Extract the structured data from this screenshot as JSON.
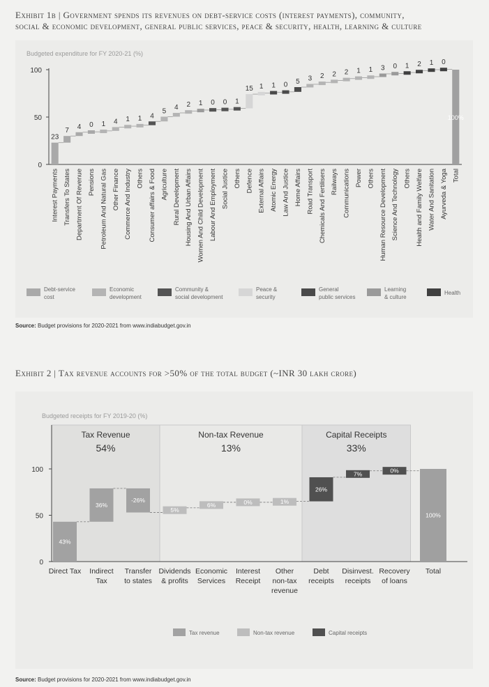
{
  "exhibit1": {
    "title_line1": "Exhibit 1b | Government spends its revenues on debt-service costs (interest payments), community,",
    "title_line2": "social & economic development, general public services, peace & security, health, learning & culture",
    "source_label": "Source:",
    "source_text": "Budget provisions for 2020-2021 from www.indiabudget.gov.in"
  },
  "exhibit2": {
    "title": "Exhibit 2 | Tax revenue accounts for >50% of the total budget (~INR 30 lakh crore)",
    "source_label": "Source:",
    "source_text": "Budget provisions for 2020-2021 from www.indiabudget.gov.in"
  },
  "colors": {
    "Debt-service cost": "#a9a9a9",
    "Economic development": "#b4b4b4",
    "Community & social development": "#545454",
    "Peace & security": "#d6d6d6",
    "General public services": "#4a4a4a",
    "Learning & culture": "#9a9a9a",
    "Health": "#404040",
    "Tax revenue": "#a2a2a2",
    "Non-tax revenue": "#bdbdbd",
    "Capital receipts": "#505050"
  },
  "chart_data": [
    {
      "type": "bar",
      "subtype": "waterfall",
      "title": "Budgeted expenditure for FY 2020-21 (%)",
      "ylim": [
        0,
        100
      ],
      "yticks": [
        "0",
        "50",
        "100"
      ],
      "categories": [
        "Interest Payments",
        "Transfers To States",
        "Department Of Revenue",
        "Pensions",
        "Petroleum And Natural Gas",
        "Other Finance",
        "Commerce And Industry",
        "Others",
        "Consumer affairs & Food",
        "Agriculture",
        "Rural Development",
        "Housing And Urban Affairs",
        "Women And Child Development",
        "Labour And Employment",
        "Social Justice",
        "Others",
        "Defence",
        "External Affairs",
        "Atomic Energy",
        "Law And Justice",
        "Home Affairs",
        "Road Transport",
        "Chemicals And Fertilisers",
        "Railways",
        "Communications",
        "Power",
        "Others",
        "Human Resource Development",
        "Science And Technology",
        "Others",
        "Health and Family Welfare",
        "Water And Sanitation",
        "Ayurveda & Yoga",
        "Total"
      ],
      "value_labels": [
        "23",
        "7",
        "4",
        "0",
        "1",
        "4",
        "1",
        "1",
        "4",
        "5",
        "4",
        "2",
        "1",
        "0",
        "0",
        "1",
        "15",
        "1",
        "1",
        "0",
        "5",
        "3",
        "2",
        "2",
        "2",
        "1",
        "1",
        "3",
        "0",
        "1",
        "2",
        "1",
        "0",
        "100%"
      ],
      "values": [
        23,
        7,
        4,
        0.4,
        1,
        4,
        1,
        1,
        4,
        5,
        4,
        2,
        1,
        0.4,
        0.4,
        1,
        15,
        1,
        1,
        0.4,
        5,
        3,
        2,
        2,
        2,
        1,
        1,
        3,
        0.4,
        1,
        2,
        1,
        0.4,
        100
      ],
      "groups": [
        "Debt-service cost",
        "Debt-service cost",
        "Debt-service cost",
        "Debt-service cost",
        "Economic development",
        "Economic development",
        "Economic development",
        "Economic development",
        "Community & social development",
        "Economic development",
        "Economic development",
        "Economic development",
        "Learning & culture",
        "Community & social development",
        "Community & social development",
        "Community & social development",
        "Peace & security",
        "Peace & security",
        "General public services",
        "General public services",
        "General public services",
        "Economic development",
        "Economic development",
        "Economic development",
        "Economic development",
        "Economic development",
        "Economic development",
        "Learning & culture",
        "Learning & culture",
        "Health",
        "Health",
        "Health",
        "Health",
        "Total"
      ],
      "legend": [
        {
          "name": "Debt-service cost",
          "line1": "Debt-service",
          "line2": "cost"
        },
        {
          "name": "Economic development",
          "line1": "Economic",
          "line2": "development"
        },
        {
          "name": "Community & social development",
          "line1": "Community &",
          "line2": "social development"
        },
        {
          "name": "Peace & security",
          "line1": "Peace &",
          "line2": "security"
        },
        {
          "name": "General public services",
          "line1": "General",
          "line2": "public services"
        },
        {
          "name": "Learning & culture",
          "line1": "Learning",
          "line2": "& culture"
        },
        {
          "name": "Health",
          "line1": "Health",
          "line2": ""
        }
      ]
    },
    {
      "type": "bar",
      "subtype": "waterfall",
      "title": "Budgeted receipts for FY 2019-20 (%)",
      "ylim": [
        0,
        100
      ],
      "yticks": [
        "0",
        "50",
        "100"
      ],
      "sections": [
        {
          "name": "Tax Revenue",
          "pct": "54%"
        },
        {
          "name": "Non-tax Revenue",
          "pct": "13%"
        },
        {
          "name": "Capital Receipts",
          "pct": "33%"
        }
      ],
      "categories": [
        [
          "Direct Tax"
        ],
        [
          "Indirect",
          "Tax"
        ],
        [
          "Transfer",
          "to states"
        ],
        [
          "Dividends",
          "& profits"
        ],
        [
          "Economic",
          "Services"
        ],
        [
          "Interest",
          "Receipt"
        ],
        [
          "Other",
          "non-tax",
          "revenue"
        ],
        [
          "Debt",
          "receipts"
        ],
        [
          "Disinvest.",
          "receipts"
        ],
        [
          "Recovery",
          "of loans"
        ],
        [
          "Total"
        ]
      ],
      "values": [
        43,
        36,
        -26,
        5,
        6,
        0,
        1,
        26,
        7,
        0,
        100
      ],
      "value_labels": [
        "43%",
        "36%",
        "-26%",
        "5%",
        "6%",
        "0%",
        "1%",
        "26%",
        "7%",
        "0%",
        "100%"
      ],
      "groups": [
        "Tax revenue",
        "Tax revenue",
        "Tax revenue",
        "Non-tax revenue",
        "Non-tax revenue",
        "Non-tax revenue",
        "Non-tax revenue",
        "Capital receipts",
        "Capital receipts",
        "Capital receipts",
        "Total"
      ],
      "legend": [
        "Tax revenue",
        "Non-tax revenue",
        "Capital receipts"
      ]
    }
  ]
}
